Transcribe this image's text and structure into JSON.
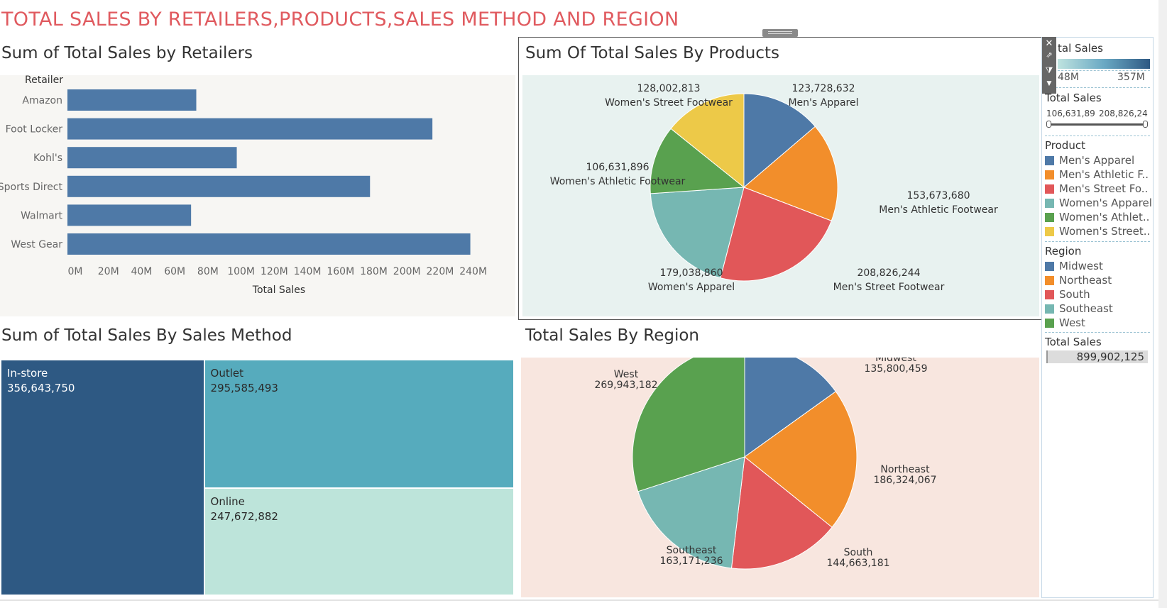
{
  "dashboard": {
    "title": "TOTAL SALES BY RETAILERS,PRODUCTS,SALES METHOD AND REGION"
  },
  "sheets": {
    "retailers_title": "Sum of Total Sales by Retailers",
    "products_title": "Sum Of Total Sales By Products",
    "method_title": "Sum of Total Sales By Sales Method",
    "region_title": "Total Sales By Region"
  },
  "legend": {
    "color_title": "tal Sales",
    "color_min": "48M",
    "color_max": "357M",
    "filter_title": "Total Sales",
    "filter_min": "106,631,89",
    "filter_max": "208,826,24",
    "product_title": "Product",
    "products": [
      {
        "label": "Men's Apparel",
        "color": "#4e79a7"
      },
      {
        "label": "Men's Athletic F..",
        "color": "#f28e2b"
      },
      {
        "label": "Men's Street Fo..",
        "color": "#e15759"
      },
      {
        "label": "Women's Apparel",
        "color": "#76b7b2"
      },
      {
        "label": "Women's Athlet..",
        "color": "#59a14f"
      },
      {
        "label": "Women's Street..",
        "color": "#edc948"
      }
    ],
    "region_title": "Region",
    "regions": [
      {
        "label": "Midwest",
        "color": "#4e79a7"
      },
      {
        "label": "Northeast",
        "color": "#f28e2b"
      },
      {
        "label": "South",
        "color": "#e15759"
      },
      {
        "label": "Southeast",
        "color": "#76b7b2"
      },
      {
        "label": "West",
        "color": "#59a14f"
      }
    ],
    "total_title": "Total Sales",
    "total_value": "899,902,125"
  },
  "chart_data": [
    {
      "type": "bar",
      "orientation": "horizontal",
      "title": "Sum of Total Sales by Retailers",
      "row_header": "Retailer",
      "categories": [
        "Amazon",
        "Foot Locker",
        "Kohl's",
        "Sports Direct",
        "Walmart",
        "West Gear"
      ],
      "values": [
        77698912,
        220094720,
        102114753,
        182470997,
        74558410,
        242964333
      ],
      "xlabel": "Total Sales",
      "xlim": [
        0,
        250000000
      ],
      "tick_values": [
        0,
        20000000,
        40000000,
        60000000,
        80000000,
        100000000,
        120000000,
        140000000,
        160000000,
        180000000,
        200000000,
        220000000,
        240000000
      ],
      "tick_labels": [
        "0M",
        "20M",
        "40M",
        "60M",
        "80M",
        "100M",
        "120M",
        "140M",
        "160M",
        "180M",
        "200M",
        "220M",
        "240M"
      ],
      "color": "#4e79a7"
    },
    {
      "type": "pie",
      "title": "Sum Of Total Sales By Products",
      "slices": [
        {
          "name": "Men's Apparel",
          "value": 123728632,
          "label": "123,728,632",
          "color": "#4e79a7"
        },
        {
          "name": "Men's Athletic Footwear",
          "value": 153673680,
          "label": "153,673,680",
          "color": "#f28e2b"
        },
        {
          "name": "Men's Street Footwear",
          "value": 208826244,
          "label": "208,826,244",
          "color": "#e15759"
        },
        {
          "name": "Women's Apparel",
          "value": 179038860,
          "label": "179,038,860",
          "color": "#76b7b2"
        },
        {
          "name": "Women's Athletic Footwear",
          "value": 106631896,
          "label": "106,631,896",
          "color": "#59a14f"
        },
        {
          "name": "Women's Street Footwear",
          "value": 128002813,
          "label": "128,002,813",
          "color": "#edc948"
        }
      ]
    },
    {
      "type": "treemap",
      "title": "Sum of Total Sales By Sales Method",
      "cells": [
        {
          "name": "In-store",
          "value": 356643750,
          "label": "356,643,750",
          "color": "#2e5983",
          "text_color": "#ffffff"
        },
        {
          "name": "Outlet",
          "value": 295585493,
          "label": "295,585,493",
          "color": "#56abbd",
          "text_color": "#2a2a2a"
        },
        {
          "name": "Online",
          "value": 247672882,
          "label": "247,672,882",
          "color": "#bde4da",
          "text_color": "#2a2a2a"
        }
      ]
    },
    {
      "type": "pie",
      "title": "Total Sales By Region",
      "slices": [
        {
          "name": "Midwest",
          "value": 135800459,
          "label": "135,800,459",
          "color": "#4e79a7"
        },
        {
          "name": "Northeast",
          "value": 186324067,
          "label": "186,324,067",
          "color": "#f28e2b"
        },
        {
          "name": "South",
          "value": 144663181,
          "label": "144,663,181",
          "color": "#e15759"
        },
        {
          "name": "Southeast",
          "value": 163171236,
          "label": "163,171,236",
          "color": "#76b7b2"
        },
        {
          "name": "West",
          "value": 269943182,
          "label": "269,943,182",
          "color": "#59a14f"
        }
      ]
    }
  ]
}
